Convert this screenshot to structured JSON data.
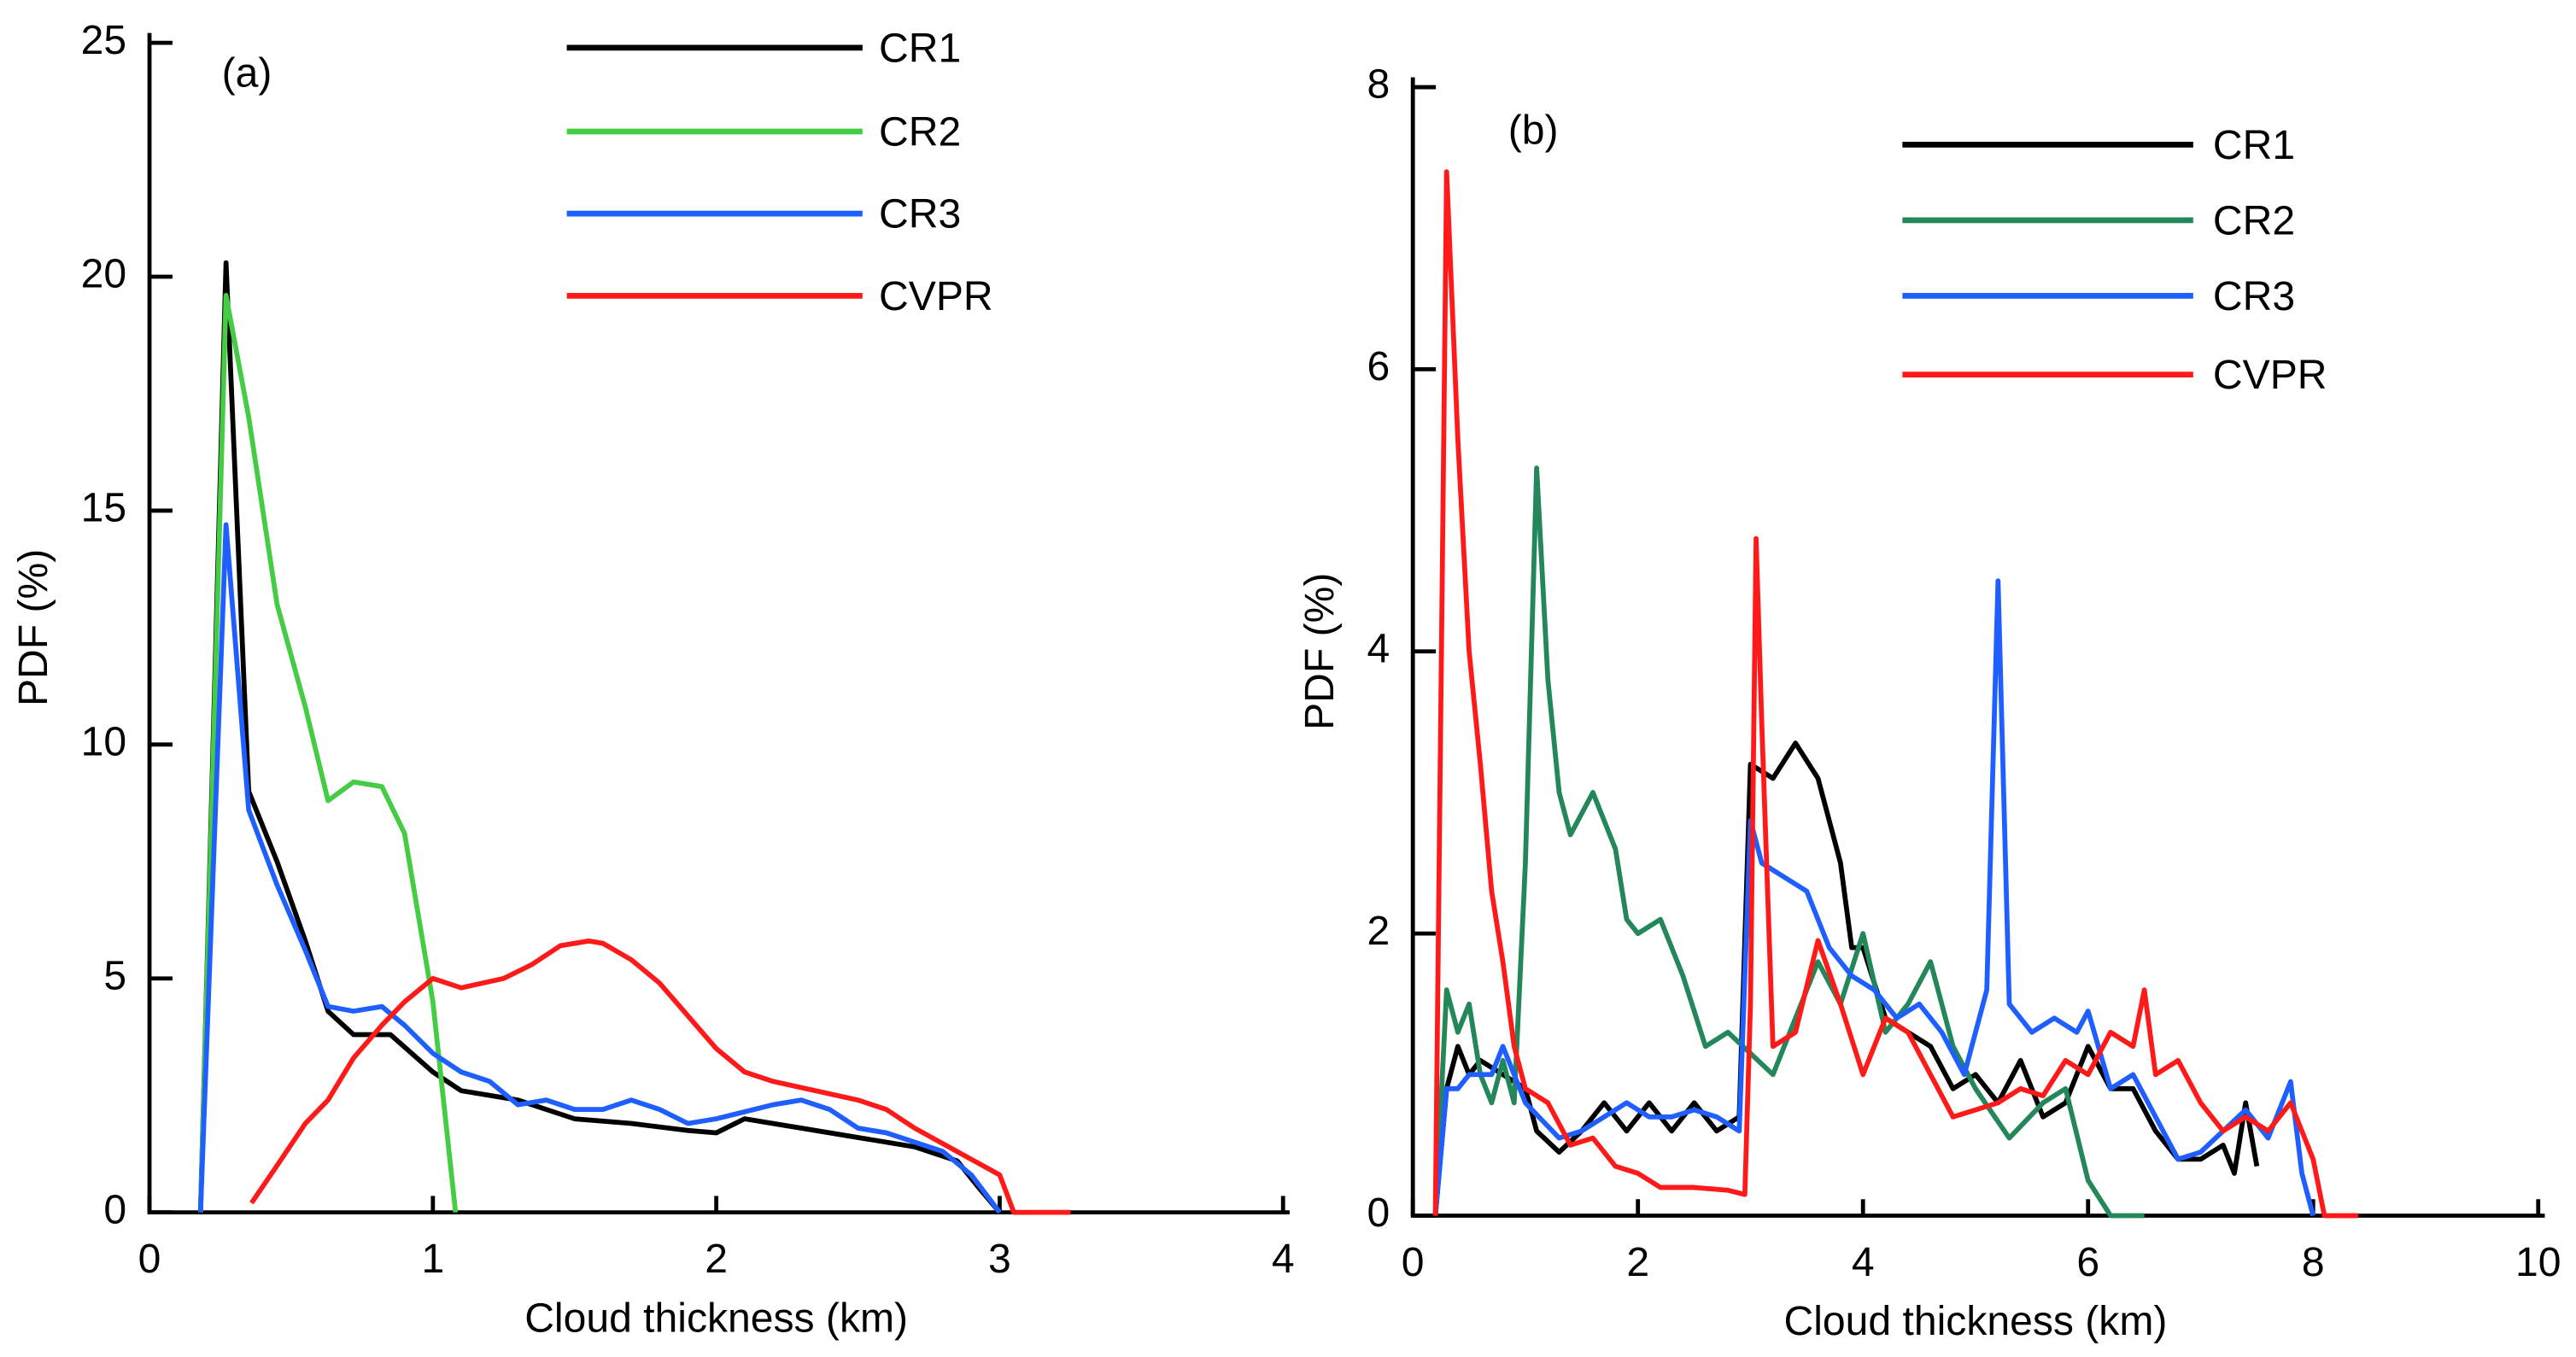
{
  "chart_data": [
    {
      "type": "line",
      "annotation": "(a)",
      "xlabel": "Cloud thickness (km)",
      "ylabel": "PDF (%)",
      "xlim": [
        0,
        4
      ],
      "xticks": [
        0,
        1,
        2,
        3,
        4
      ],
      "ylim": [
        0,
        25
      ],
      "yticks": [
        0,
        5,
        10,
        15,
        20,
        25
      ],
      "series": [
        {
          "name": "CR1",
          "color": "#000000",
          "x": [
            0.18,
            0.27,
            0.35,
            0.45,
            0.55,
            0.63,
            0.72,
            0.85,
            1.0,
            1.1,
            1.3,
            1.5,
            1.7,
            1.9,
            2.0,
            2.1,
            2.3,
            2.5,
            2.7,
            2.85,
            2.93,
            3.0
          ],
          "values": [
            0,
            20.3,
            9,
            7.5,
            5.8,
            4.3,
            3.8,
            3.8,
            3.0,
            2.6,
            2.4,
            2.0,
            1.9,
            1.75,
            1.7,
            2.0,
            1.8,
            1.6,
            1.4,
            1.1,
            0.5,
            0
          ]
        },
        {
          "name": "CR2",
          "color": "#44cc44",
          "x": [
            0.18,
            0.27,
            0.35,
            0.45,
            0.55,
            0.63,
            0.72,
            0.82,
            0.9,
            1.0,
            1.08
          ],
          "values": [
            0,
            19.6,
            17,
            13,
            10.8,
            8.8,
            9.2,
            9.1,
            8.1,
            4.5,
            0
          ]
        },
        {
          "name": "CR3",
          "color": "#1f5fff",
          "x": [
            0.18,
            0.27,
            0.35,
            0.45,
            0.55,
            0.63,
            0.72,
            0.82,
            0.9,
            1.0,
            1.1,
            1.2,
            1.3,
            1.4,
            1.5,
            1.6,
            1.7,
            1.8,
            1.9,
            2.0,
            2.2,
            2.3,
            2.4,
            2.5,
            2.6,
            2.8,
            2.9,
            3.0
          ],
          "values": [
            0,
            14.7,
            8.6,
            7,
            5.6,
            4.4,
            4.3,
            4.4,
            4.0,
            3.4,
            3.0,
            2.8,
            2.3,
            2.4,
            2.2,
            2.2,
            2.4,
            2.2,
            1.9,
            2.0,
            2.3,
            2.4,
            2.2,
            1.8,
            1.7,
            1.3,
            0.8,
            0
          ]
        },
        {
          "name": "CVPR",
          "color": "#ff1a1a",
          "x": [
            0.36,
            0.45,
            0.55,
            0.63,
            0.72,
            0.82,
            0.9,
            1.0,
            1.1,
            1.25,
            1.35,
            1.45,
            1.55,
            1.6,
            1.7,
            1.8,
            1.9,
            2.0,
            2.1,
            2.2,
            2.35,
            2.5,
            2.6,
            2.7,
            2.85,
            3.0,
            3.05,
            3.25
          ],
          "values": [
            0.2,
            1.0,
            1.9,
            2.4,
            3.3,
            4.0,
            4.5,
            5.0,
            4.8,
            5.0,
            5.3,
            5.7,
            5.8,
            5.75,
            5.4,
            4.9,
            4.2,
            3.5,
            3.0,
            2.8,
            2.6,
            2.4,
            2.2,
            1.8,
            1.3,
            0.8,
            0,
            0
          ]
        }
      ]
    },
    {
      "type": "line",
      "annotation": "(b)",
      "xlabel": "Cloud thickness (km)",
      "ylabel": "PDF (%)",
      "xlim": [
        0,
        10
      ],
      "xticks": [
        0,
        2,
        4,
        6,
        8,
        10
      ],
      "ylim": [
        0,
        8
      ],
      "yticks": [
        0,
        2,
        4,
        6,
        8
      ],
      "series": [
        {
          "name": "CR1",
          "color": "#000000",
          "x": [
            0.2,
            0.3,
            0.4,
            0.5,
            0.6,
            0.8,
            1.0,
            1.1,
            1.3,
            1.5,
            1.7,
            1.9,
            2.1,
            2.3,
            2.5,
            2.7,
            2.9,
            3.0,
            3.2,
            3.4,
            3.6,
            3.8,
            3.9,
            4.0,
            4.2,
            4.4,
            4.6,
            4.8,
            5.0,
            5.2,
            5.4,
            5.6,
            5.8,
            6.0,
            6.2,
            6.4,
            6.6,
            6.8,
            7.0,
            7.2,
            7.3,
            7.4,
            7.5
          ],
          "values": [
            0,
            0.9,
            1.2,
            1.0,
            1.1,
            1.0,
            0.9,
            0.6,
            0.45,
            0.6,
            0.8,
            0.6,
            0.8,
            0.6,
            0.8,
            0.6,
            0.7,
            3.2,
            3.1,
            3.35,
            3.1,
            2.5,
            1.9,
            1.9,
            1.4,
            1.3,
            1.2,
            0.9,
            1.0,
            0.8,
            1.1,
            0.7,
            0.8,
            1.2,
            0.9,
            0.9,
            0.6,
            0.4,
            0.4,
            0.5,
            0.3,
            0.8,
            0.35
          ]
        },
        {
          "name": "CR2",
          "color": "#23875a",
          "x": [
            0.2,
            0.3,
            0.4,
            0.5,
            0.6,
            0.7,
            0.8,
            0.9,
            1.0,
            1.1,
            1.2,
            1.3,
            1.4,
            1.6,
            1.8,
            1.9,
            2.0,
            2.2,
            2.4,
            2.6,
            2.8,
            3.0,
            3.2,
            3.4,
            3.6,
            3.8,
            4.0,
            4.2,
            4.4,
            4.6,
            4.8,
            5.0,
            5.3,
            5.6,
            5.8,
            6.0,
            6.2,
            6.5
          ],
          "values": [
            0,
            1.6,
            1.3,
            1.5,
            1.0,
            0.8,
            1.1,
            0.8,
            2.5,
            5.3,
            3.8,
            3.0,
            2.7,
            3.0,
            2.6,
            2.1,
            2.0,
            2.1,
            1.7,
            1.2,
            1.3,
            1.15,
            1.0,
            1.4,
            1.8,
            1.5,
            2.0,
            1.3,
            1.5,
            1.8,
            1.2,
            0.9,
            0.55,
            0.8,
            0.9,
            0.25,
            0,
            0
          ]
        },
        {
          "name": "CR3",
          "color": "#1f5fff",
          "x": [
            0.2,
            0.3,
            0.4,
            0.5,
            0.7,
            0.8,
            1.0,
            1.3,
            1.5,
            1.7,
            1.9,
            2.1,
            2.3,
            2.5,
            2.7,
            2.9,
            3.0,
            3.1,
            3.3,
            3.5,
            3.7,
            3.9,
            4.1,
            4.3,
            4.5,
            4.7,
            4.9,
            5.1,
            5.2,
            5.3,
            5.5,
            5.7,
            5.9,
            6.0,
            6.2,
            6.4,
            6.6,
            6.8,
            7.0,
            7.2,
            7.4,
            7.6,
            7.8,
            7.9,
            8.0
          ],
          "values": [
            0,
            0.9,
            0.9,
            1.0,
            1.0,
            1.2,
            0.8,
            0.55,
            0.6,
            0.7,
            0.8,
            0.7,
            0.7,
            0.75,
            0.7,
            0.6,
            2.8,
            2.5,
            2.4,
            2.3,
            1.9,
            1.7,
            1.6,
            1.4,
            1.5,
            1.3,
            1.0,
            1.6,
            4.5,
            1.5,
            1.3,
            1.4,
            1.3,
            1.45,
            0.9,
            1.0,
            0.7,
            0.4,
            0.45,
            0.6,
            0.75,
            0.55,
            0.95,
            0.3,
            0
          ]
        },
        {
          "name": "CVPR",
          "color": "#ff1a1a",
          "x": [
            0.2,
            0.3,
            0.4,
            0.5,
            0.6,
            0.7,
            0.8,
            0.9,
            1.0,
            1.2,
            1.4,
            1.6,
            1.8,
            2.0,
            2.2,
            2.5,
            2.8,
            2.95,
            3.0,
            3.05,
            3.1,
            3.2,
            3.4,
            3.6,
            3.8,
            4.0,
            4.2,
            4.4,
            4.6,
            4.8,
            5.0,
            5.2,
            5.4,
            5.6,
            5.8,
            6.0,
            6.2,
            6.4,
            6.5,
            6.6,
            6.8,
            7.0,
            7.2,
            7.4,
            7.6,
            7.8,
            8.0,
            8.1,
            8.4
          ],
          "values": [
            0,
            7.4,
            5.5,
            4.0,
            3.2,
            2.3,
            1.8,
            1.2,
            0.9,
            0.8,
            0.5,
            0.55,
            0.35,
            0.3,
            0.2,
            0.2,
            0.18,
            0.15,
            1.5,
            4.8,
            3.5,
            1.2,
            1.3,
            1.95,
            1.5,
            1.0,
            1.4,
            1.3,
            1.0,
            0.7,
            0.75,
            0.8,
            0.9,
            0.85,
            1.1,
            1.0,
            1.3,
            1.2,
            1.6,
            1.0,
            1.1,
            0.8,
            0.6,
            0.7,
            0.6,
            0.8,
            0.4,
            0,
            0
          ]
        }
      ]
    }
  ]
}
